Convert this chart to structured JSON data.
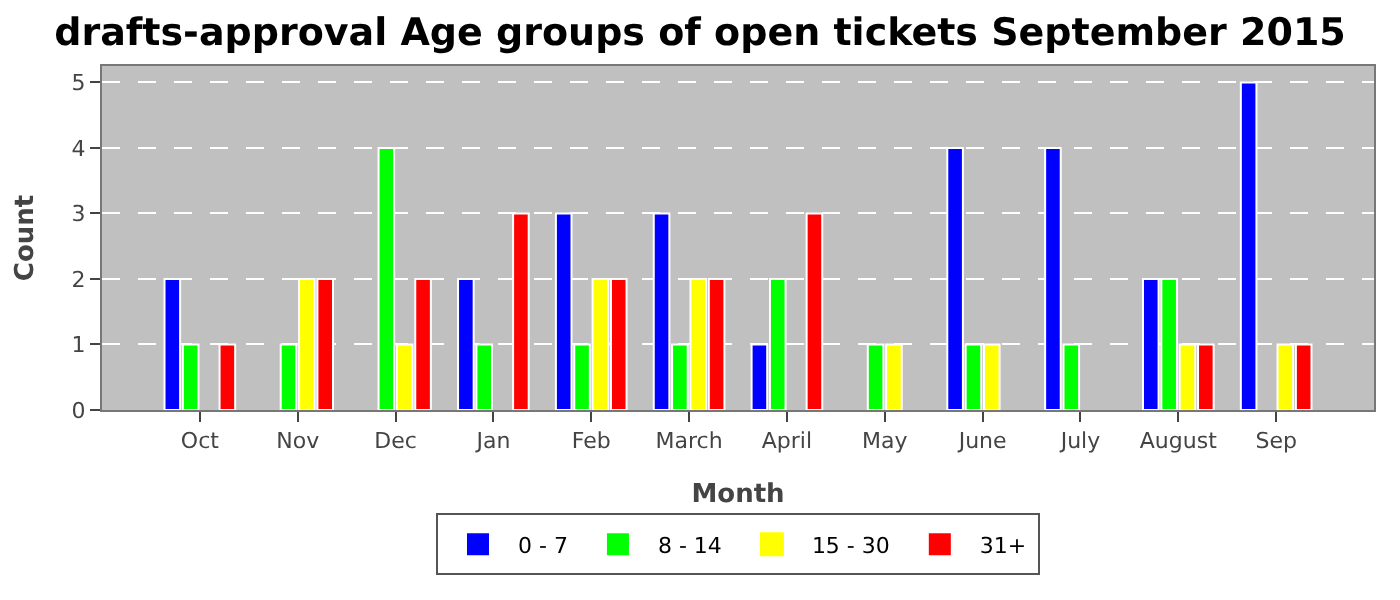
{
  "chart_data": {
    "type": "bar",
    "title": "drafts-approval Age groups of open tickets September 2015",
    "xlabel": "Month",
    "ylabel": "Count",
    "categories": [
      "Oct",
      "Nov",
      "Dec",
      "Jan",
      "Feb",
      "March",
      "April",
      "May",
      "June",
      "July",
      "August",
      "Sep"
    ],
    "series": [
      {
        "name": "0 - 7",
        "color": "#0000ff",
        "values": [
          2,
          0,
          0,
          2,
          3,
          3,
          1,
          0,
          4,
          4,
          2,
          5
        ]
      },
      {
        "name": "8 - 14",
        "color": "#00ff00",
        "values": [
          1,
          1,
          4,
          1,
          1,
          1,
          2,
          1,
          1,
          1,
          2,
          0
        ]
      },
      {
        "name": "15 - 30",
        "color": "#ffff00",
        "values": [
          0,
          2,
          1,
          0,
          2,
          2,
          0,
          1,
          1,
          0,
          1,
          1
        ]
      },
      {
        "name": "31+",
        "color": "#ff0000",
        "values": [
          1,
          2,
          2,
          3,
          2,
          2,
          3,
          0,
          0,
          0,
          1,
          1
        ]
      }
    ],
    "ylim": [
      0,
      5.25
    ],
    "yticks": [
      0,
      1,
      2,
      3,
      4,
      5
    ],
    "grid": "y",
    "legend": "bottom"
  }
}
